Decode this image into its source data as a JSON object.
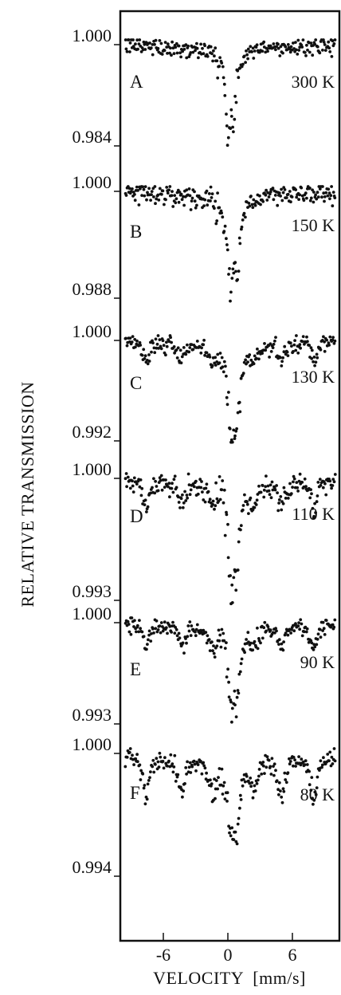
{
  "chart_data": {
    "type": "scatter",
    "xlabel": "VELOCITY  [mm/s]",
    "ylabel": "RELATIVE  TRANSMISSION",
    "xlim": [
      -10.5,
      10.5
    ],
    "x_ticks": [
      -6,
      0,
      6
    ],
    "x_tick_labels": [
      "-6",
      "0",
      "6"
    ],
    "grid": false,
    "legend": "none",
    "marker_color": "#111111",
    "panels": [
      {
        "letter": "A",
        "temperature": "300 K",
        "y_top_label": "1.000",
        "y_bottom_label": "0.984",
        "ylim": [
          0.984,
          1.0005
        ],
        "pattern": "doublet",
        "min_transmission": 0.9855,
        "lines": [
          {
            "x": 0.0,
            "depth": 0.014,
            "width": 0.25
          },
          {
            "x": 0.6,
            "depth": 0.01,
            "width": 0.25
          }
        ]
      },
      {
        "letter": "B",
        "temperature": "150 K",
        "y_top_label": "1.000",
        "y_bottom_label": "0.988",
        "ylim": [
          0.988,
          1.0005
        ],
        "pattern": "doublet",
        "min_transmission": 0.9895,
        "lines": [
          {
            "x": 0.2,
            "depth": 0.0095,
            "width": 0.3
          },
          {
            "x": 0.9,
            "depth": 0.008,
            "width": 0.3
          }
        ]
      },
      {
        "letter": "C",
        "temperature": "130 K",
        "y_top_label": "1.000",
        "y_bottom_label": "0.992",
        "ylim": [
          0.992,
          1.0005
        ],
        "pattern": "doublet + sextet",
        "min_transmission": 0.9925,
        "lines": [
          {
            "x": -7.6,
            "depth": 0.0015
          },
          {
            "x": -4.3,
            "depth": 0.0013
          },
          {
            "x": -1.4,
            "depth": 0.001
          },
          {
            "x": 0.3,
            "depth": 0.006
          },
          {
            "x": 0.8,
            "depth": 0.005
          },
          {
            "x": 2.4,
            "depth": 0.001
          },
          {
            "x": 5.0,
            "depth": 0.0013
          },
          {
            "x": 8.0,
            "depth": 0.0015
          }
        ]
      },
      {
        "letter": "D",
        "temperature": "110 K",
        "y_top_label": "1.000",
        "y_bottom_label": "0.993",
        "ylim": [
          0.993,
          1.0005
        ],
        "pattern": "doublet + sextet",
        "min_transmission": 0.9935,
        "lines": [
          {
            "x": -7.6,
            "depth": 0.0015
          },
          {
            "x": -4.3,
            "depth": 0.0013
          },
          {
            "x": -1.4,
            "depth": 0.001
          },
          {
            "x": 0.3,
            "depth": 0.0045
          },
          {
            "x": 0.8,
            "depth": 0.004
          },
          {
            "x": 2.4,
            "depth": 0.001
          },
          {
            "x": 5.0,
            "depth": 0.0013
          },
          {
            "x": 8.0,
            "depth": 0.0015
          }
        ]
      },
      {
        "letter": "E",
        "temperature": "90 K",
        "y_top_label": "1.000",
        "y_bottom_label": "0.993",
        "ylim": [
          0.993,
          1.0005
        ],
        "pattern": "doublet + sextet",
        "min_transmission": 0.9937,
        "lines": [
          {
            "x": -7.6,
            "depth": 0.0016
          },
          {
            "x": -4.3,
            "depth": 0.0014
          },
          {
            "x": -1.4,
            "depth": 0.0011
          },
          {
            "x": 0.3,
            "depth": 0.004
          },
          {
            "x": 0.8,
            "depth": 0.0035
          },
          {
            "x": 2.4,
            "depth": 0.0011
          },
          {
            "x": 5.0,
            "depth": 0.0014
          },
          {
            "x": 8.0,
            "depth": 0.0016
          }
        ]
      },
      {
        "letter": "F",
        "temperature": "80 K",
        "y_top_label": "1.000",
        "y_bottom_label": "0.994",
        "ylim": [
          0.994,
          1.0005
        ],
        "pattern": "doublet + sextet",
        "min_transmission": 0.9945,
        "lines": [
          {
            "x": -7.6,
            "depth": 0.0022
          },
          {
            "x": -4.3,
            "depth": 0.0018
          },
          {
            "x": -1.4,
            "depth": 0.0014
          },
          {
            "x": 0.3,
            "depth": 0.003
          },
          {
            "x": 0.8,
            "depth": 0.0025
          },
          {
            "x": 2.4,
            "depth": 0.0014
          },
          {
            "x": 5.0,
            "depth": 0.0018
          },
          {
            "x": 8.0,
            "depth": 0.0022
          }
        ]
      }
    ]
  }
}
